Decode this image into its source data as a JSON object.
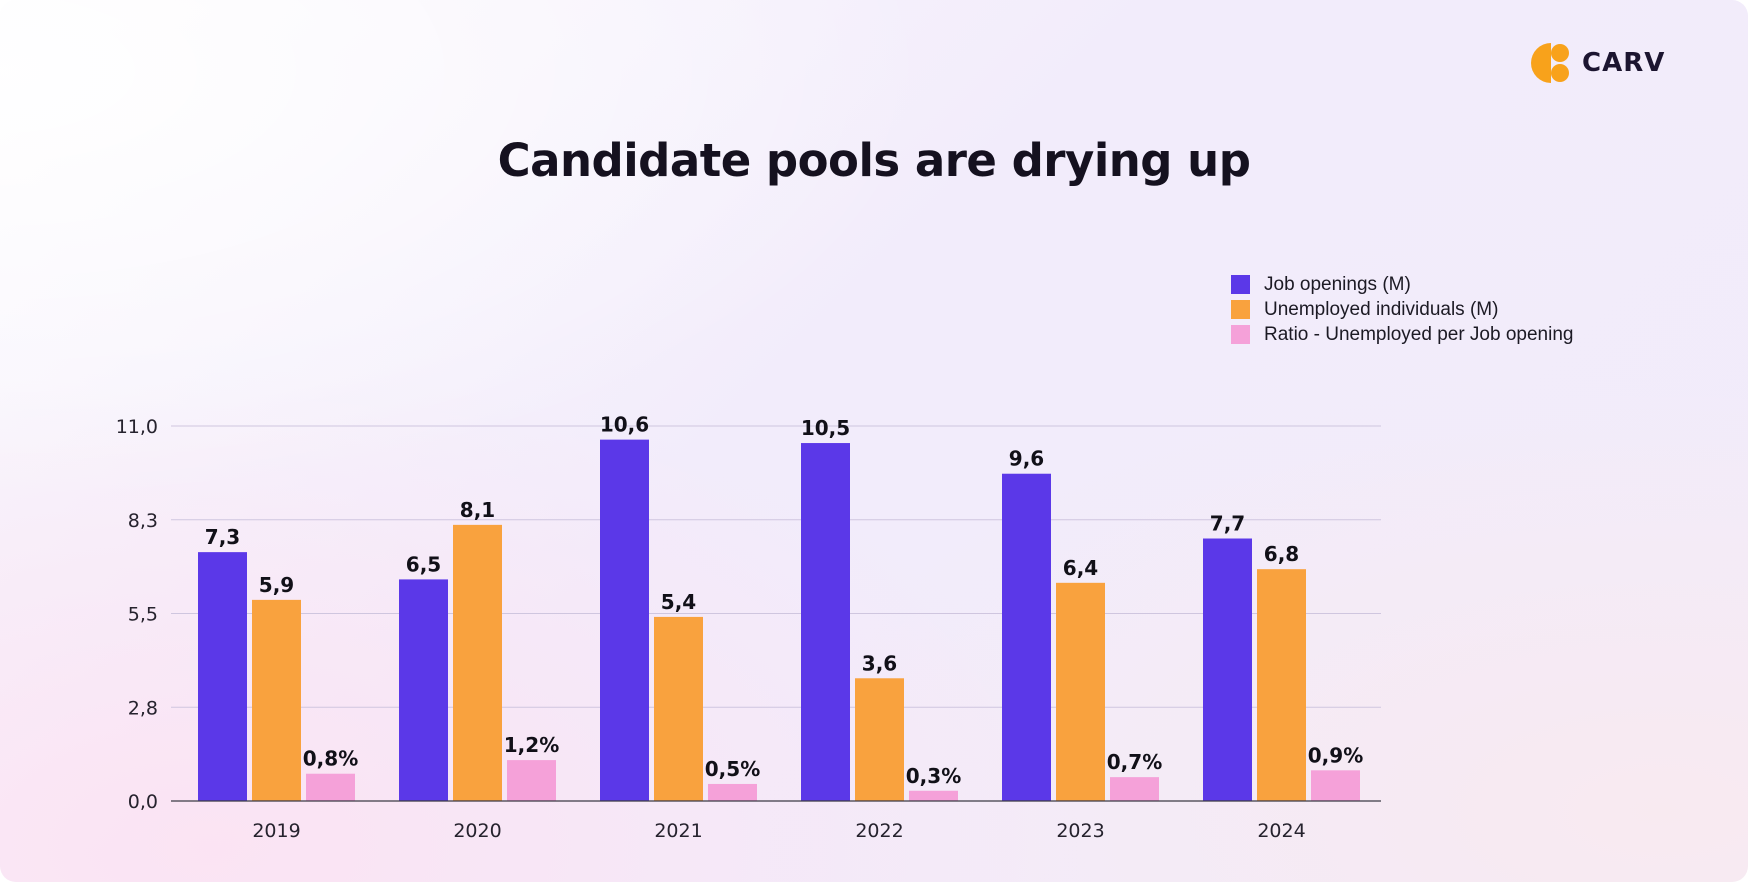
{
  "brand": {
    "name": "CARV",
    "logo_icon": "carv-logo-icon",
    "logo_color": "#F8A21B"
  },
  "chart_data": {
    "type": "bar",
    "title": "Candidate pools are drying up",
    "categories": [
      "2019",
      "2020",
      "2021",
      "2022",
      "2023",
      "2024"
    ],
    "ylim": [
      0,
      11
    ],
    "yticks": [
      "0,0",
      "2,8",
      "5,5",
      "8,3",
      "11,0"
    ],
    "ytick_values": [
      0,
      2.75,
      5.5,
      8.25,
      11
    ],
    "grid": true,
    "legend_position": "top-right",
    "series": [
      {
        "name": "Job openings (M)",
        "color": "#5B38E8",
        "values": [
          7.3,
          6.5,
          10.6,
          10.5,
          9.6,
          7.7
        ],
        "labels": [
          "7,3",
          "6,5",
          "10,6",
          "10,5",
          "9,6",
          "7,7"
        ]
      },
      {
        "name": "Unemployed individuals (M)",
        "color": "#F9A23E",
        "values": [
          5.9,
          8.1,
          5.4,
          3.6,
          6.4,
          6.8
        ],
        "labels": [
          "5,9",
          "8,1",
          "5,4",
          "3,6",
          "6,4",
          "6,8"
        ]
      },
      {
        "name": "Ratio - Unemployed per Job opening",
        "color": "#F5A1D9",
        "values": [
          0.8,
          1.2,
          0.5,
          0.3,
          0.7,
          0.9
        ],
        "labels": [
          "0,8%",
          "1,2%",
          "0,5%",
          "0,3%",
          "0,7%",
          "0,9%"
        ]
      }
    ]
  }
}
